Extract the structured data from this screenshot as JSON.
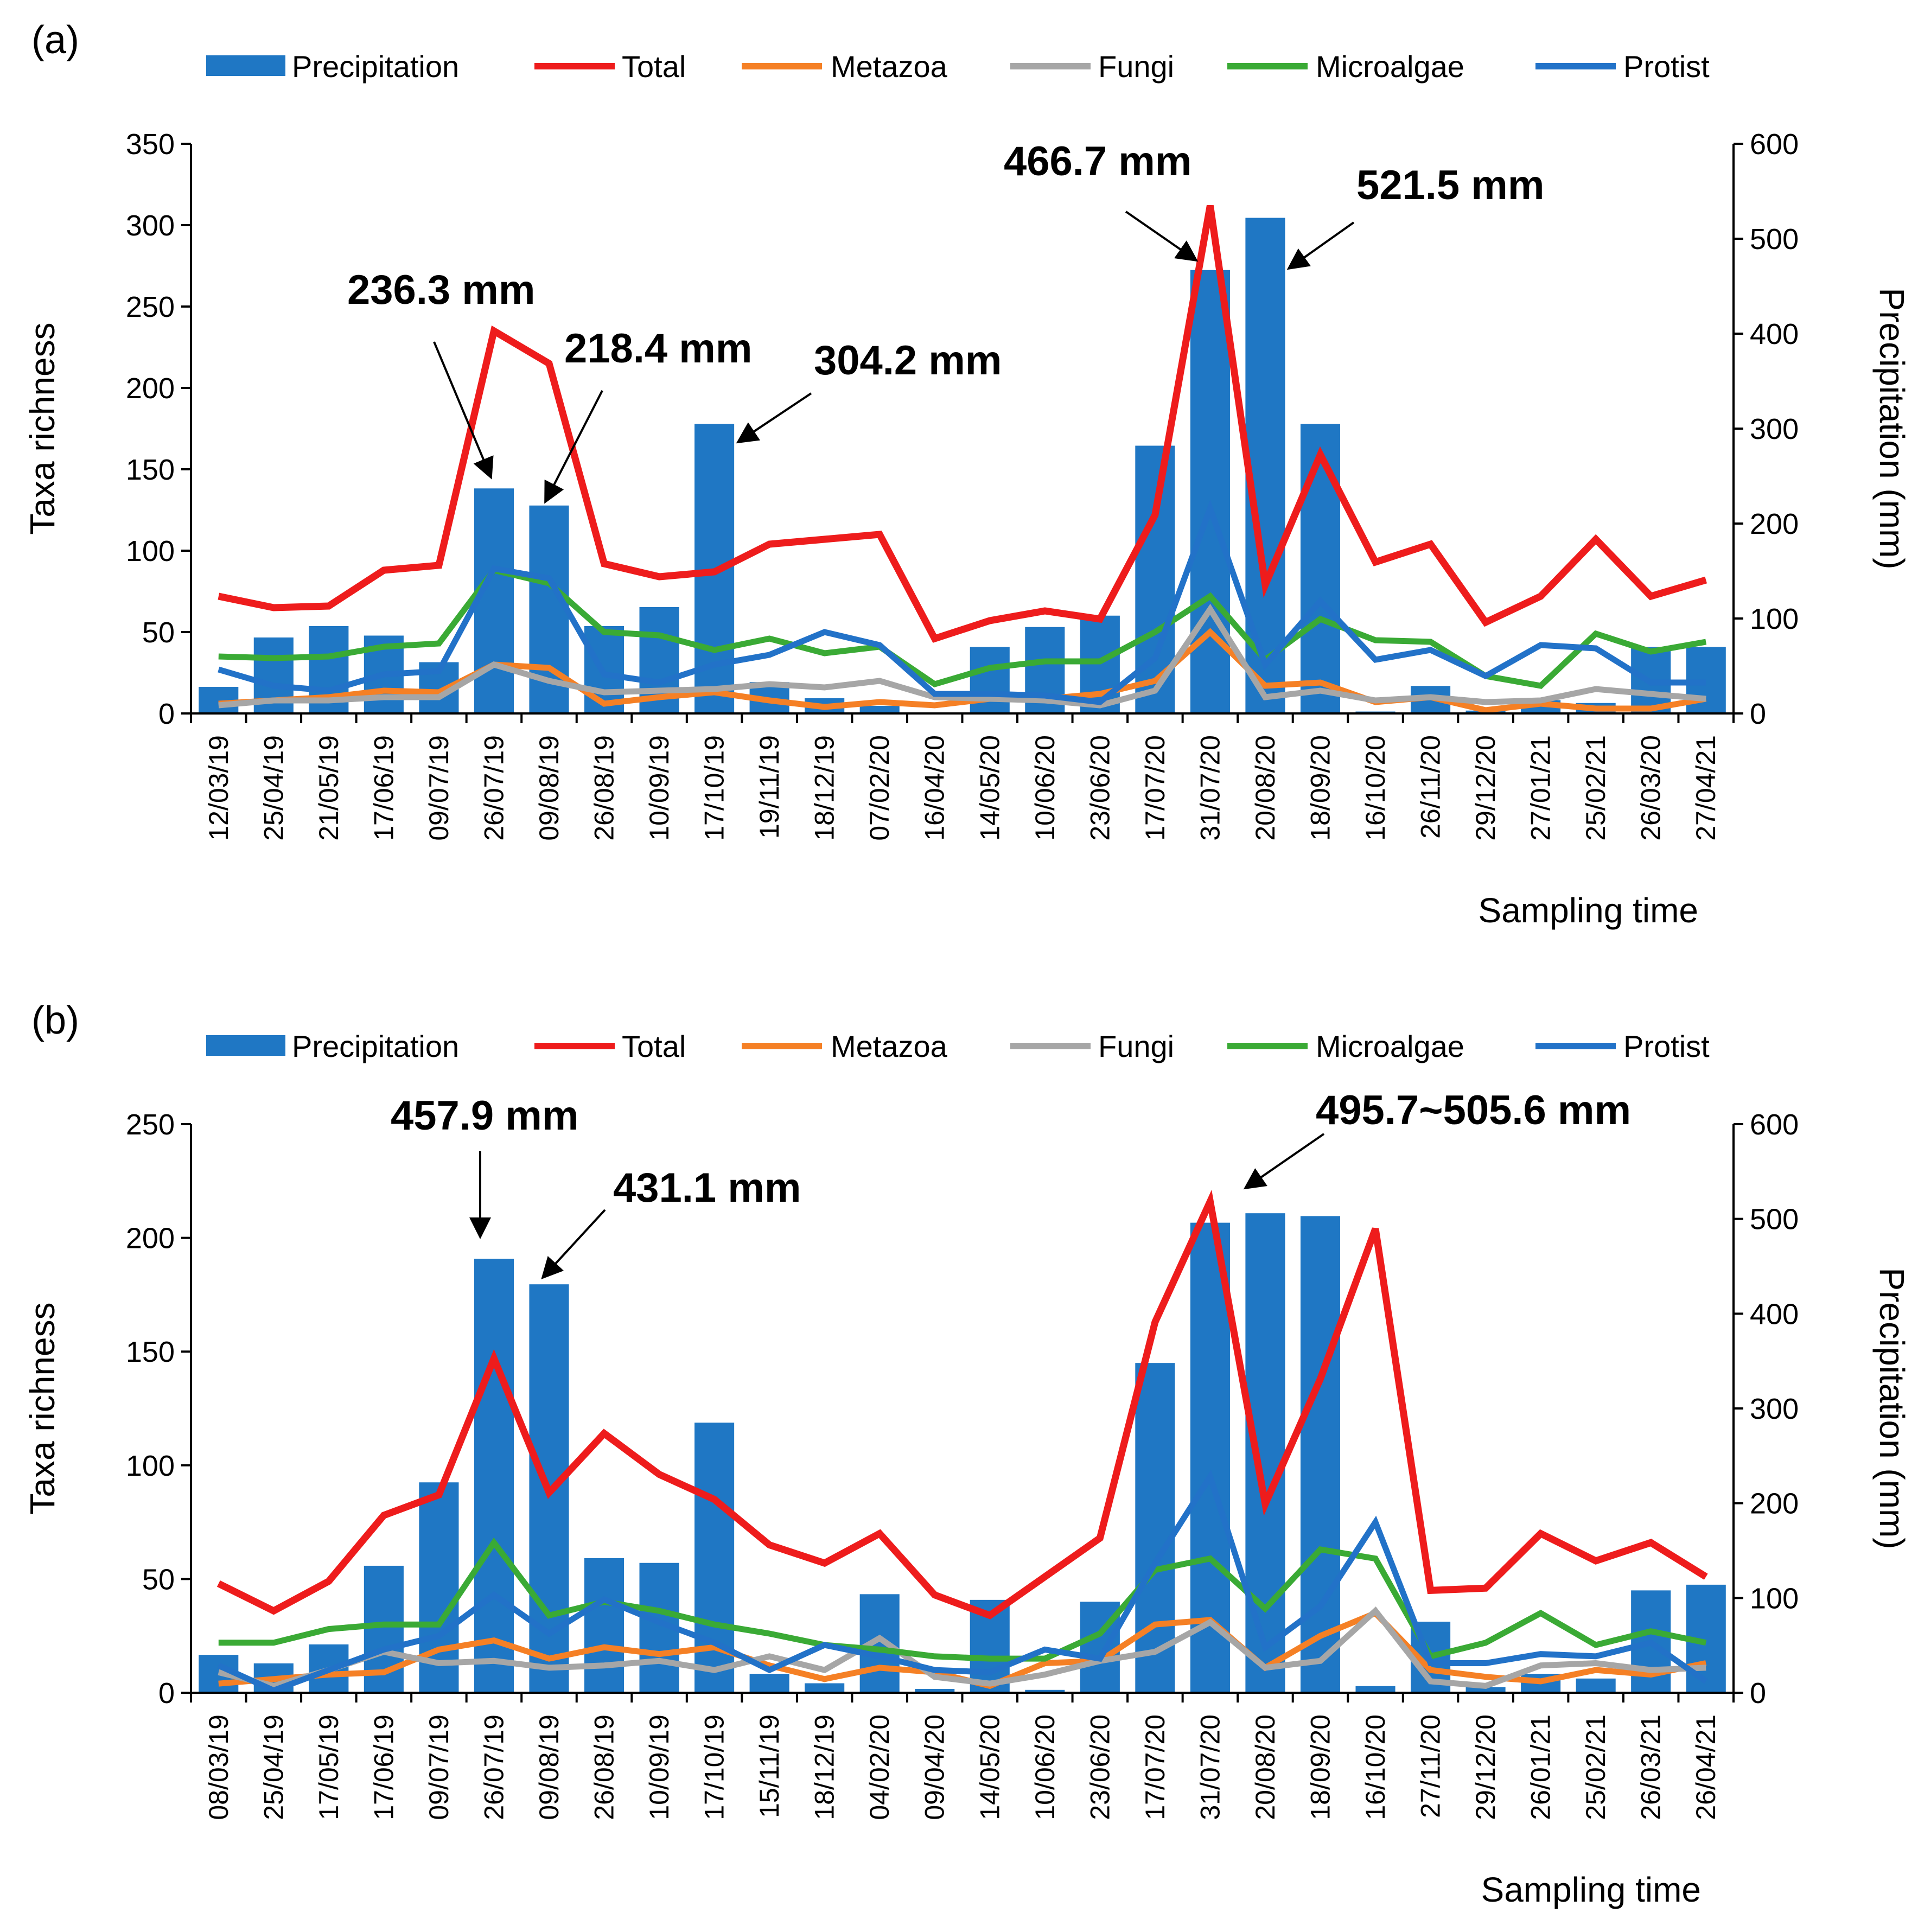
{
  "figure": {
    "colors": {
      "precipitation": "#1f77c4",
      "total": "#ee1c1c",
      "metazoa": "#f58025",
      "fungi": "#a6a6a6",
      "microalgae": "#3aaa35",
      "protist": "#2272c8",
      "arrow": "#000000"
    },
    "legend": [
      "Precipitation",
      "Total",
      "Metazoa",
      "Fungi",
      "Microalgae",
      "Protist"
    ]
  },
  "chart_data": [
    {
      "type": "bar+line",
      "panel_label": "(a)",
      "xlabel": "Sampling time",
      "ylabel_left": "Taxa richness",
      "ylabel_right": "Precipitation (mm)",
      "ylim_left": [
        0,
        350
      ],
      "ylim_right": [
        0,
        600
      ],
      "yticks_left": [
        "0",
        "50",
        "100",
        "150",
        "200",
        "250",
        "300",
        "350"
      ],
      "yticks_right": [
        "0",
        "100",
        "200",
        "300",
        "400",
        "500",
        "600"
      ],
      "categories": [
        "12/03/19",
        "25/04/19",
        "21/05/19",
        "17/06/19",
        "09/07/19",
        "26/07/19",
        "09/08/19",
        "26/08/19",
        "10/09/19",
        "17/10/19",
        "19/11/19",
        "18/12/19",
        "07/02/20",
        "16/04/20",
        "14/05/20",
        "10/06/20",
        "23/06/20",
        "17/07/20",
        "31/07/20",
        "20/08/20",
        "18/09/20",
        "16/10/20",
        "26/11/20",
        "29/12/20",
        "27/01/21",
        "25/02/21",
        "26/03/20",
        "27/04/21"
      ],
      "bars": {
        "name": "Precipitation",
        "axis": "right",
        "values": [
          28,
          80,
          92,
          82,
          54,
          237,
          219,
          92,
          112,
          305,
          33,
          16,
          8,
          0,
          70,
          91,
          103,
          282,
          467,
          522,
          305,
          2,
          29,
          3,
          14,
          11,
          70,
          70
        ]
      },
      "series": [
        {
          "name": "Total",
          "values": [
            72,
            65,
            66,
            88,
            91,
            235,
            215,
            92,
            84,
            87,
            104,
            107,
            110,
            46,
            57,
            63,
            58,
            122,
            312,
            79,
            159,
            93,
            104,
            56,
            72,
            107,
            72,
            82
          ]
        },
        {
          "name": "Metazoa",
          "values": [
            6,
            8,
            10,
            14,
            13,
            30,
            28,
            6,
            10,
            13,
            8,
            4,
            7,
            5,
            9,
            9,
            12,
            20,
            50,
            17,
            19,
            7,
            10,
            2,
            6,
            3,
            3,
            9
          ]
        },
        {
          "name": "Fungi",
          "values": [
            5,
            8,
            8,
            10,
            10,
            30,
            20,
            13,
            14,
            15,
            18,
            16,
            20,
            10,
            9,
            8,
            5,
            14,
            64,
            10,
            14,
            8,
            10,
            7,
            8,
            15,
            12,
            9
          ]
        },
        {
          "name": "Microalgae",
          "values": [
            35,
            34,
            35,
            41,
            43,
            88,
            80,
            50,
            48,
            39,
            46,
            37,
            41,
            18,
            28,
            32,
            32,
            50,
            72,
            33,
            58,
            45,
            44,
            23,
            17,
            49,
            38,
            44
          ]
        },
        {
          "name": "Protist",
          "values": [
            27,
            17,
            14,
            24,
            26,
            89,
            83,
            24,
            19,
            30,
            36,
            50,
            42,
            12,
            12,
            11,
            7,
            34,
            126,
            30,
            69,
            33,
            39,
            23,
            42,
            40,
            19,
            19
          ]
        }
      ],
      "annotations": [
        {
          "text": "236.3 mm",
          "target": "26/07/19"
        },
        {
          "text": "218.4 mm",
          "target": "09/08/19"
        },
        {
          "text": "304.2 mm",
          "target": "17/10/19"
        },
        {
          "text": "466.7 mm",
          "target": "31/07/20"
        },
        {
          "text": "521.5 mm",
          "target": "20/08/20"
        }
      ]
    },
    {
      "type": "bar+line",
      "panel_label": "(b)",
      "xlabel": "Sampling time",
      "ylabel_left": "Taxa richness",
      "ylabel_right": "Precipitation (mm)",
      "ylim_left": [
        0,
        250
      ],
      "ylim_right": [
        0,
        600
      ],
      "yticks_left": [
        "0",
        "50",
        "100",
        "150",
        "200",
        "250"
      ],
      "yticks_right": [
        "0",
        "100",
        "200",
        "300",
        "400",
        "500",
        "600"
      ],
      "categories": [
        "08/03/19",
        "25/04/19",
        "17/05/19",
        "17/06/19",
        "09/07/19",
        "26/07/19",
        "09/08/19",
        "26/08/19",
        "10/09/19",
        "17/10/19",
        "15/11/19",
        "18/12/19",
        "04/02/20",
        "09/04/20",
        "14/05/20",
        "10/06/20",
        "23/06/20",
        "17/07/20",
        "31/07/20",
        "20/08/20",
        "18/09/20",
        "16/10/20",
        "27/11/20",
        "29/12/20",
        "26/01/21",
        "25/02/21",
        "26/03/21",
        "26/04/21"
      ],
      "bars": {
        "name": "Precipitation",
        "axis": "right",
        "values": [
          40,
          31,
          51,
          134,
          222,
          458,
          431,
          142,
          137,
          285,
          20,
          10,
          104,
          4,
          98,
          3,
          96,
          348,
          496,
          506,
          503,
          7,
          75,
          6,
          20,
          15,
          108,
          114
        ]
      },
      "series": [
        {
          "name": "Total",
          "values": [
            48,
            36,
            49,
            78,
            87,
            147,
            88,
            114,
            96,
            85,
            65,
            57,
            70,
            43,
            34,
            51,
            68,
            163,
            216,
            83,
            138,
            204,
            45,
            46,
            70,
            58,
            66,
            51
          ]
        },
        {
          "name": "Metazoa",
          "values": [
            4,
            6,
            8,
            9,
            19,
            23,
            15,
            20,
            17,
            20,
            12,
            6,
            11,
            9,
            3,
            13,
            14,
            30,
            32,
            11,
            25,
            35,
            10,
            7,
            5,
            10,
            8,
            13
          ]
        },
        {
          "name": "Fungi",
          "values": [
            9,
            3,
            10,
            18,
            13,
            14,
            11,
            12,
            14,
            10,
            16,
            10,
            24,
            7,
            4,
            8,
            14,
            18,
            31,
            11,
            14,
            36,
            5,
            3,
            12,
            13,
            10,
            11
          ]
        },
        {
          "name": "Microalgae",
          "values": [
            22,
            22,
            28,
            30,
            30,
            66,
            34,
            40,
            36,
            30,
            26,
            21,
            19,
            16,
            15,
            15,
            26,
            54,
            59,
            37,
            63,
            59,
            16,
            22,
            35,
            21,
            27,
            22
          ]
        },
        {
          "name": "Protist",
          "values": [
            12,
            1,
            10,
            19,
            25,
            43,
            26,
            41,
            31,
            22,
            10,
            21,
            16,
            10,
            9,
            19,
            15,
            57,
            95,
            20,
            38,
            75,
            13,
            13,
            17,
            16,
            22,
            5
          ]
        }
      ],
      "annotations": [
        {
          "text": "457.9 mm",
          "target": "26/07/19"
        },
        {
          "text": "431.1 mm",
          "target": "09/08/19"
        },
        {
          "text": "495.7~505.6 mm",
          "target": "20/08/20"
        }
      ]
    }
  ]
}
